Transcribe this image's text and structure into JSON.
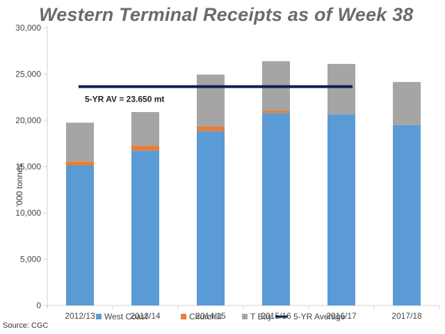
{
  "chart_data": {
    "type": "bar",
    "stacked": true,
    "title": "Western Terminal Receipts as of Week 38",
    "ylabel": "'000  tonnes",
    "xlabel": "",
    "ylim": [
      0,
      30000
    ],
    "yticks": [
      0,
      5000,
      10000,
      15000,
      20000,
      25000,
      30000
    ],
    "ytick_labels": [
      "0",
      "5,000",
      "10,000",
      "15,000",
      "20,000",
      "25,000",
      "30,000"
    ],
    "grid": false,
    "legend_position": "bottom",
    "categories": [
      "2012/13",
      "2013/14",
      "2014/15",
      "2015/16",
      "2016/17",
      "2017/18"
    ],
    "series": [
      {
        "name": "West Coast",
        "color": "#5b9bd5",
        "values": [
          15150,
          16750,
          18850,
          20800,
          20650,
          19500
        ]
      },
      {
        "name": "Churchill",
        "color": "#ed7d31",
        "values": [
          400,
          500,
          500,
          250,
          0,
          0
        ]
      },
      {
        "name": "T Bay",
        "color": "#a5a5a5",
        "values": [
          4200,
          3650,
          5600,
          5350,
          5450,
          4650
        ]
      }
    ],
    "average_line": {
      "name": "5-YR Average",
      "color": "#0b1f4f",
      "value": 23650,
      "from_category": "2012/13",
      "to_category": "2016/17",
      "annotation": "5-YR AV = 23.650 mt"
    }
  },
  "source": "Source: CGC"
}
